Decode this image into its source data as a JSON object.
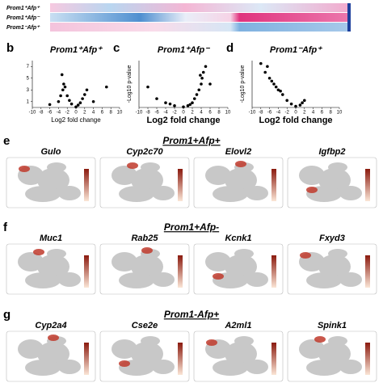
{
  "heatmap": {
    "rows": [
      "Prom1⁺Afp⁺",
      "Prom1⁺Afp⁻",
      "Prom1⁻Afp⁺"
    ]
  },
  "volcano_plots": [
    {
      "label": "b",
      "title": "Prom1⁺Afp⁺",
      "x_label": "Log2 fold change",
      "xlim": [
        -10,
        10
      ],
      "ylim": [
        0,
        8
      ],
      "xticks": [
        -10,
        -8,
        -6,
        -4,
        -2,
        0,
        2,
        4,
        6,
        8,
        10
      ],
      "yticks": [
        7,
        5,
        3,
        1
      ],
      "points": [
        [
          -4,
          1
        ],
        [
          -3.5,
          2
        ],
        [
          -3,
          3
        ],
        [
          -2.8,
          4
        ],
        [
          -2.5,
          3.5
        ],
        [
          -2,
          2
        ],
        [
          -1.5,
          1.2
        ],
        [
          -1,
          0.6
        ],
        [
          0,
          0.1
        ],
        [
          0.5,
          0.4
        ],
        [
          1,
          0.8
        ],
        [
          1.5,
          1.5
        ],
        [
          2,
          2.2
        ],
        [
          2.5,
          3
        ],
        [
          -6,
          0.5
        ],
        [
          4,
          1
        ],
        [
          7,
          3.5
        ],
        [
          -3.2,
          5.6
        ]
      ]
    },
    {
      "label": "c",
      "title": "Prom1⁺Afp⁻",
      "x_label": "Log2 fold change",
      "y_label": "-Log10 p-value",
      "xlim": [
        -10,
        10
      ],
      "ylim": [
        0,
        8
      ],
      "xticks": [
        -10,
        -8,
        -6,
        -4,
        -2,
        0,
        2,
        4,
        6,
        8,
        10
      ],
      "points": [
        [
          -8,
          3.5
        ],
        [
          -6,
          1.5
        ],
        [
          -4,
          0.8
        ],
        [
          -2,
          0.3
        ],
        [
          0,
          0.1
        ],
        [
          1,
          0.3
        ],
        [
          2,
          0.8
        ],
        [
          2.5,
          1.5
        ],
        [
          3,
          2.2
        ],
        [
          3.5,
          3
        ],
        [
          4,
          4
        ],
        [
          4.2,
          5
        ],
        [
          4.5,
          6
        ],
        [
          5,
          7
        ],
        [
          3.8,
          5.5
        ],
        [
          1.5,
          0.5
        ],
        [
          -3,
          0.6
        ],
        [
          6,
          4
        ]
      ]
    },
    {
      "label": "d",
      "title": "Prom1⁻Afp⁺",
      "x_label": "Log2 fold change",
      "y_label": "-Log10 p-value",
      "xlim": [
        -10,
        10
      ],
      "ylim": [
        0,
        8
      ],
      "xticks": [
        -10,
        -8,
        -6,
        -4,
        -2,
        0,
        2,
        4,
        6,
        8,
        10
      ],
      "points": [
        [
          -8,
          7.5
        ],
        [
          -7,
          6
        ],
        [
          -6,
          5
        ],
        [
          -5.5,
          4.5
        ],
        [
          -5,
          4
        ],
        [
          -4,
          3
        ],
        [
          -3,
          2.2
        ],
        [
          -2,
          1.2
        ],
        [
          -1,
          0.6
        ],
        [
          0,
          0.2
        ],
        [
          1,
          0.4
        ],
        [
          1.5,
          0.8
        ],
        [
          2,
          1.2
        ],
        [
          -6.5,
          7
        ],
        [
          -4.5,
          3.5
        ],
        [
          -3.5,
          2.8
        ]
      ]
    }
  ],
  "tsne_sections": [
    {
      "label": "e",
      "header": "Prom1+Afp+",
      "genes": [
        "Gulo",
        "Cyp2c70",
        "Elovl2",
        "Igfbp2"
      ]
    },
    {
      "label": "f",
      "header": "Prom1+Afp-",
      "genes": [
        "Muc1",
        "Rab25",
        "Kcnk1",
        "Fxyd3"
      ]
    },
    {
      "label": "g",
      "header": "Prom1-Afp+",
      "genes": [
        "Cyp2a4",
        "Cse2e",
        "A2ml1",
        "Spink1"
      ]
    }
  ]
}
